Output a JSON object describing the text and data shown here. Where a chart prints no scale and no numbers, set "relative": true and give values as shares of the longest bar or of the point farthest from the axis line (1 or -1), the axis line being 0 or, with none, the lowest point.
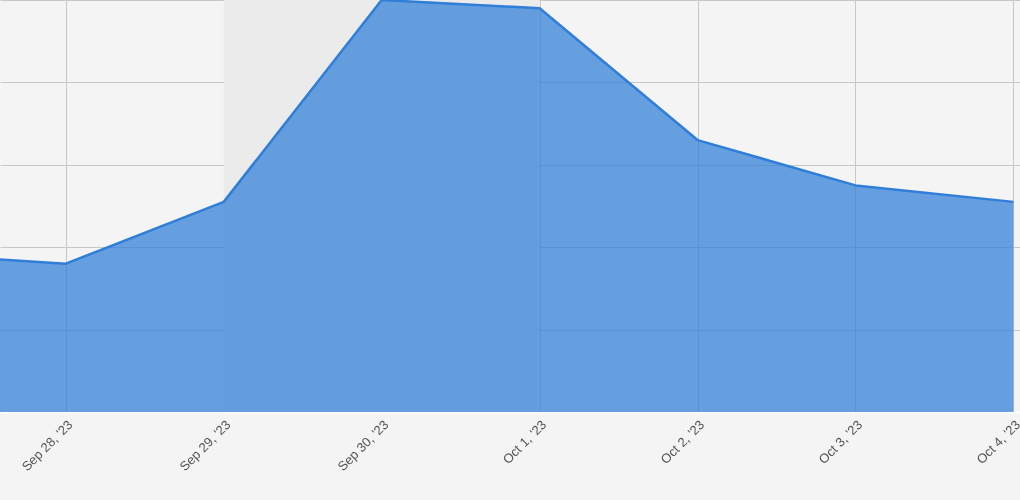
{
  "chart_data": {
    "type": "area",
    "relative": true,
    "x": [
      "2023-09-27T14:00",
      "2023-09-28",
      "2023-09-29",
      "2023-09-30",
      "2023-10-01",
      "2023-10-02",
      "2023-10-03",
      "2023-10-04"
    ],
    "series": [
      {
        "color": "#2f7ed8",
        "values": [
          0.37,
          0.36,
          0.51,
          1,
          0.98,
          0.66,
          0.55,
          0.51
        ]
      }
    ],
    "xlim": [
      "2023-09-27T14:00",
      "2023-10-04T01:00"
    ],
    "xticks": [
      {
        "value": "2023-09-28",
        "label": "Sep 28, '23"
      },
      {
        "value": "2023-09-29",
        "label": "Sep 29, '23"
      },
      {
        "value": "2023-09-30",
        "label": "Sep 30, '23"
      },
      {
        "value": "2023-10-01",
        "label": "Oct 1, '23"
      },
      {
        "value": "2023-10-02",
        "label": "Oct 2, '23"
      },
      {
        "value": "2023-10-03",
        "label": "Oct 3, '23"
      },
      {
        "value": "2023-10-04",
        "label": "Oct 4, '23"
      }
    ],
    "bands": [
      {
        "axis": "x",
        "from": "2023-09-29",
        "to": "2023-10-01",
        "color": "#ebebeb"
      }
    ],
    "grid": true
  }
}
